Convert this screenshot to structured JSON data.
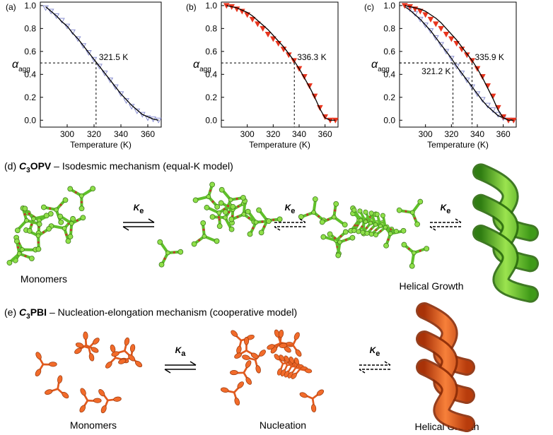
{
  "chart_data": [
    {
      "type": "line",
      "panel_label": "(a)",
      "xlabel": "Temperature (K)",
      "ylabel": "α",
      "ylabel_sub": "agg",
      "x": [
        284,
        288,
        292,
        296,
        300,
        304,
        308,
        312,
        316,
        320,
        324,
        328,
        332,
        336,
        340,
        344,
        348,
        352,
        356,
        360,
        364,
        368
      ],
      "xlim": [
        280,
        370
      ],
      "xticks": [
        300,
        320,
        340,
        360
      ],
      "ylim": [
        -0.06,
        1.03
      ],
      "yticks": [
        {
          "value": 0,
          "label": "0.0"
        },
        0.2,
        0.4,
        0.6,
        0.8,
        {
          "value": 1,
          "label": "1.0"
        }
      ],
      "series": [
        {
          "color": "#8a8fd0",
          "marker": "triangle-down-open",
          "values": [
            0.98,
            0.95,
            0.91,
            0.87,
            0.82,
            0.77,
            0.71,
            0.65,
            0.59,
            0.53,
            0.47,
            0.41,
            0.35,
            0.29,
            0.23,
            0.17,
            0.12,
            0.08,
            0.05,
            0.02,
            0.01,
            0.0
          ]
        },
        {
          "color": "#000000",
          "values": [
            0.99,
            0.95,
            0.91,
            0.86,
            0.82,
            0.76,
            0.71,
            0.65,
            0.59,
            0.53,
            0.47,
            0.41,
            0.35,
            0.29,
            0.23,
            0.18,
            0.13,
            0.09,
            0.05,
            0.03,
            0.01,
            0.0
          ]
        }
      ],
      "annotations": [
        {
          "x": 321.5,
          "y": 0.5,
          "label": "321.5 K"
        }
      ]
    },
    {
      "type": "line",
      "panel_label": "(b)",
      "xlabel": "Temperature (K)",
      "ylabel": "α",
      "ylabel_sub": "agg",
      "x": [
        284,
        288,
        292,
        296,
        300,
        304,
        308,
        312,
        316,
        320,
        324,
        328,
        332,
        336,
        340,
        344,
        348,
        352,
        356,
        360,
        364,
        368
      ],
      "xlim": [
        280,
        370
      ],
      "xticks": [
        300,
        320,
        340,
        360
      ],
      "ylim": [
        -0.06,
        1.03
      ],
      "yticks": [
        {
          "value": 0,
          "label": "0.0"
        },
        0.2,
        0.4,
        0.6,
        0.8,
        {
          "value": 1,
          "label": "1.0"
        }
      ],
      "series": [
        {
          "color": "#e8351e",
          "marker": "triangle-down",
          "values": [
            1.0,
            0.99,
            0.97,
            0.95,
            0.92,
            0.88,
            0.84,
            0.8,
            0.75,
            0.71,
            0.67,
            0.62,
            0.57,
            0.52,
            0.45,
            0.38,
            0.3,
            0.21,
            0.11,
            0.03,
            0.0,
            0.0
          ]
        },
        {
          "color": "#000000",
          "values": [
            1.0,
            0.99,
            0.98,
            0.96,
            0.94,
            0.91,
            0.87,
            0.83,
            0.79,
            0.74,
            0.69,
            0.64,
            0.58,
            0.52,
            0.45,
            0.37,
            0.29,
            0.2,
            0.1,
            0.02,
            0.0,
            0.0
          ]
        }
      ],
      "annotations": [
        {
          "x": 336.3,
          "y": 0.5,
          "label": "336.3 K"
        }
      ]
    },
    {
      "type": "line",
      "panel_label": "(c)",
      "xlabel": "Temperature (K)",
      "ylabel": "α",
      "ylabel_sub": "agg",
      "x": [
        284,
        288,
        292,
        296,
        300,
        304,
        308,
        312,
        316,
        320,
        324,
        328,
        332,
        336,
        340,
        344,
        348,
        352,
        356,
        360,
        364,
        368
      ],
      "xlim": [
        280,
        370
      ],
      "xticks": [
        300,
        320,
        340,
        360
      ],
      "ylim": [
        -0.06,
        1.03
      ],
      "yticks": [
        {
          "value": 0,
          "label": "0.0"
        },
        0.2,
        0.4,
        0.6,
        0.8,
        {
          "value": 1,
          "label": "1.0"
        }
      ],
      "series": [
        {
          "color": "#8a8fd0",
          "marker": "triangle-down-open",
          "values": [
            1.0,
            0.97,
            0.93,
            0.88,
            0.83,
            0.78,
            0.72,
            0.66,
            0.6,
            0.54,
            0.47,
            0.41,
            0.35,
            0.29,
            0.23,
            0.18,
            0.13,
            0.09,
            0.05,
            0.02,
            0.0,
            0.0
          ]
        },
        {
          "color": "#000000",
          "values": [
            0.99,
            0.96,
            0.92,
            0.88,
            0.83,
            0.78,
            0.72,
            0.66,
            0.6,
            0.54,
            0.47,
            0.41,
            0.35,
            0.29,
            0.23,
            0.17,
            0.12,
            0.08,
            0.04,
            0.02,
            0.01,
            0.0
          ]
        },
        {
          "color": "#e8351e",
          "marker": "triangle-down",
          "values": [
            1.0,
            0.99,
            0.97,
            0.95,
            0.92,
            0.88,
            0.84,
            0.8,
            0.75,
            0.71,
            0.67,
            0.62,
            0.57,
            0.52,
            0.45,
            0.38,
            0.3,
            0.21,
            0.11,
            0.03,
            0.0,
            0.0
          ]
        },
        {
          "color": "#000000",
          "values": [
            1.0,
            0.99,
            0.98,
            0.97,
            0.95,
            0.92,
            0.89,
            0.85,
            0.8,
            0.75,
            0.7,
            0.64,
            0.58,
            0.52,
            0.45,
            0.37,
            0.28,
            0.19,
            0.09,
            0.02,
            0.0,
            0.0
          ]
        }
      ],
      "annotations": [
        {
          "x": 321.2,
          "y": 0.5,
          "label": "321.2 K"
        },
        {
          "x": 335.9,
          "y": 0.5,
          "label": "335.9 K"
        }
      ]
    }
  ],
  "diagram": {
    "d": {
      "label": "(d)",
      "compound": "C",
      "compound_sub": "3",
      "compound_name": "OPV",
      "mechanism": "– Isodesmic mechanism (equal-K model)",
      "steps": [
        {
          "K": "K",
          "sub": "e"
        },
        {
          "K": "K",
          "sub": "e"
        },
        {
          "K": "K",
          "sub": "e"
        }
      ],
      "captions": [
        "Monomers",
        "Helical Growth"
      ]
    },
    "e": {
      "label": "(e)",
      "compound": "C",
      "compound_sub": "3",
      "compound_name": "PBI",
      "mechanism": "– Nucleation-elongation mechanism (cooperative model)",
      "steps": [
        {
          "K": "K",
          "sub": "a"
        },
        {
          "K": "K",
          "sub": "e"
        }
      ],
      "captions": [
        "Monomers",
        "Nucleation",
        "Helical Growth"
      ]
    }
  }
}
